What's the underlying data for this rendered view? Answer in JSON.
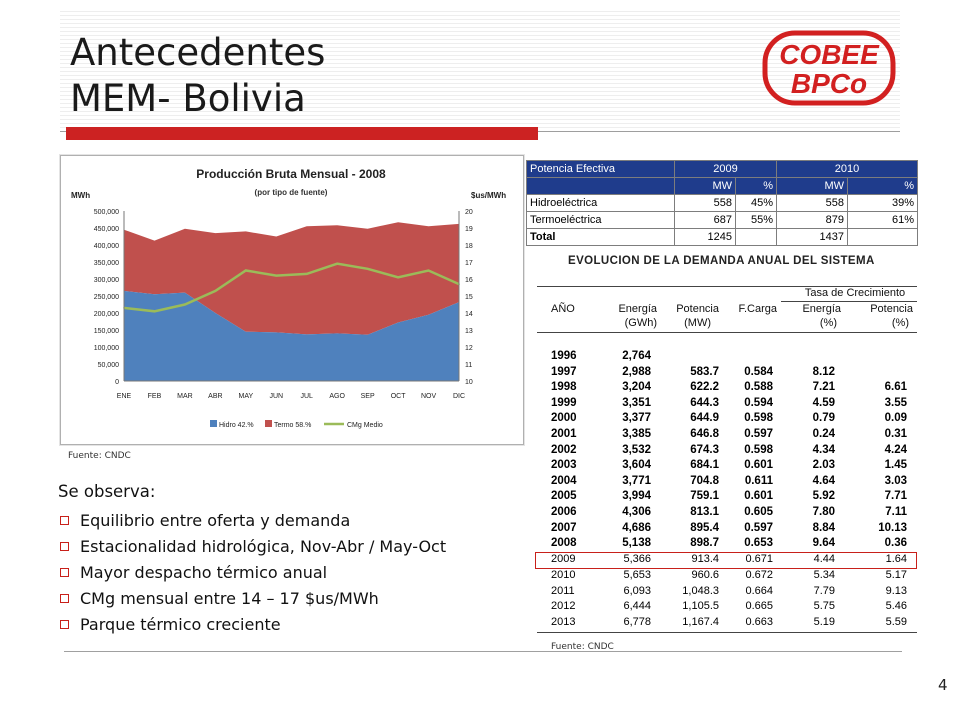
{
  "title": {
    "line1": "Antecedentes",
    "line2": "MEM- Bolivia"
  },
  "logo": {
    "line1": "COBEE",
    "line2": "BPCo",
    "color": "#d22020"
  },
  "page_number": "4",
  "observations": {
    "intro": "Se observa:",
    "items": [
      "Equilibrio entre oferta y demanda",
      "Estacionalidad hidrológica, Nov-Abr / May-Oct",
      "Mayor despacho térmico anual",
      "CMg mensual entre 14 – 17 $us/MWh",
      "Parque térmico creciente"
    ]
  },
  "chart_source": "Fuente: CNDC",
  "table_source": "Fuente: CNDC",
  "chart_data": {
    "type": "area",
    "title": "Producción Bruta Mensual - 2008",
    "subtitle": "(por tipo de fuente)",
    "ylabel": "MWh",
    "y2label": "$us/MWh",
    "categories": [
      "ENE",
      "FEB",
      "MAR",
      "ABR",
      "MAY",
      "JUN",
      "JUL",
      "AGO",
      "SEP",
      "OCT",
      "NOV",
      "DIC"
    ],
    "ylim": [
      0,
      500000
    ],
    "yticks": [
      "500,000",
      "450,000",
      "400,000",
      "350,000",
      "300,000",
      "250,000",
      "200,000",
      "150,000",
      "100,000",
      "50,000",
      "0"
    ],
    "y2lim": [
      10,
      20
    ],
    "y2ticks": [
      "20",
      "19",
      "18",
      "17",
      "16",
      "15",
      "14",
      "13",
      "12",
      "11",
      "10"
    ],
    "series": [
      {
        "name": "Hidro 42.%",
        "type": "area",
        "color": "#4f81bd",
        "values": [
          265000,
          255000,
          260000,
          200000,
          145000,
          143000,
          137000,
          140000,
          136000,
          172000,
          195000,
          232000
        ]
      },
      {
        "name": "Termo 58.%",
        "type": "area",
        "color": "#c0504d",
        "values": [
          180000,
          158000,
          188000,
          235000,
          295000,
          282000,
          318000,
          318000,
          312000,
          295000,
          260000,
          230000
        ]
      },
      {
        "name": "CMg Medio",
        "type": "line",
        "axis": "right",
        "color": "#9bbb59",
        "values": [
          14.3,
          14.1,
          14.5,
          15.3,
          16.5,
          16.2,
          16.3,
          16.9,
          16.6,
          16.1,
          16.5,
          15.7
        ]
      }
    ],
    "legend": "bottom",
    "grid": false
  },
  "potencia_table": {
    "header1": [
      "Potencia Efectiva",
      "2009",
      "2010"
    ],
    "header2": [
      "",
      "MW",
      "%",
      "MW",
      "%"
    ],
    "rows": [
      {
        "label": "Hidroeléctrica",
        "mw2009": "558",
        "p2009": "45%",
        "mw2010": "558",
        "p2010": "39%"
      },
      {
        "label": "Termoeléctrica",
        "mw2009": "687",
        "p2009": "55%",
        "mw2010": "879",
        "p2010": "61%"
      },
      {
        "label": "Total",
        "mw2009": "1245",
        "p2009": "",
        "mw2010": "1437",
        "p2010": ""
      }
    ]
  },
  "demand_table": {
    "title": "EVOLUCION DE LA DEMANDA ANUAL DEL SISTEMA",
    "tasa_header": "Tasa de Crecimiento",
    "headers": [
      "AÑO",
      "Energía",
      "Potencia",
      "F.Carga",
      "Energía",
      "Potencia"
    ],
    "units": [
      "",
      "(GWh)",
      "(MW)",
      "",
      "(%)",
      "(%)"
    ],
    "rows_bold": [
      [
        "1996",
        "2,764",
        "",
        "",
        "",
        ""
      ],
      [
        "1997",
        "2,988",
        "583.7",
        "0.584",
        "8.12",
        ""
      ],
      [
        "1998",
        "3,204",
        "622.2",
        "0.588",
        "7.21",
        "6.61"
      ],
      [
        "1999",
        "3,351",
        "644.3",
        "0.594",
        "4.59",
        "3.55"
      ],
      [
        "2000",
        "3,377",
        "644.9",
        "0.598",
        "0.79",
        "0.09"
      ],
      [
        "2001",
        "3,385",
        "646.8",
        "0.597",
        "0.24",
        "0.31"
      ],
      [
        "2002",
        "3,532",
        "674.3",
        "0.598",
        "4.34",
        "4.24"
      ],
      [
        "2003",
        "3,604",
        "684.1",
        "0.601",
        "2.03",
        "1.45"
      ],
      [
        "2004",
        "3,771",
        "704.8",
        "0.611",
        "4.64",
        "3.03"
      ],
      [
        "2005",
        "3,994",
        "759.1",
        "0.601",
        "5.92",
        "7.71"
      ],
      [
        "2006",
        "4,306",
        "813.1",
        "0.605",
        "7.80",
        "7.11"
      ],
      [
        "2007",
        "4,686",
        "895.4",
        "0.597",
        "8.84",
        "10.13"
      ],
      [
        "2008",
        "5,138",
        "898.7",
        "0.653",
        "9.64",
        "0.36"
      ]
    ],
    "rows_normal": [
      [
        "2009",
        "5,366",
        "913.4",
        "0.671",
        "4.44",
        "1.64"
      ],
      [
        "2010",
        "5,653",
        "960.6",
        "0.672",
        "5.34",
        "5.17"
      ],
      [
        "2011",
        "6,093",
        "1,048.3",
        "0.664",
        "7.79",
        "9.13"
      ],
      [
        "2012",
        "6,444",
        "1,105.5",
        "0.665",
        "5.75",
        "5.46"
      ],
      [
        "2013",
        "6,778",
        "1,167.4",
        "0.663",
        "5.19",
        "5.59"
      ]
    ],
    "highlight_year": "2009",
    "highlight_color": "#c8201a"
  }
}
